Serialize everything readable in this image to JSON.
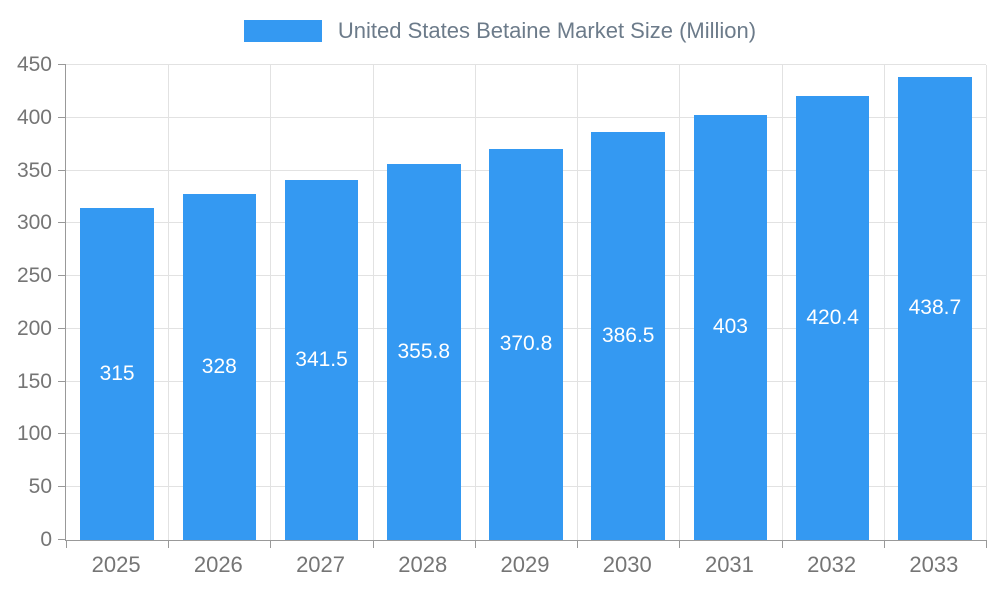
{
  "chart_data": {
    "type": "bar",
    "title": "United States Betaine Market Size (Million)",
    "categories": [
      "2025",
      "2026",
      "2027",
      "2028",
      "2029",
      "2030",
      "2031",
      "2032",
      "2033"
    ],
    "values": [
      315,
      328,
      341.5,
      355.8,
      370.8,
      386.5,
      403,
      420.4,
      438.7
    ],
    "value_labels": [
      "315",
      "328",
      "341.5",
      "355.8",
      "370.8",
      "386.5",
      "403",
      "420.4",
      "438.7"
    ],
    "xlabel": "",
    "ylabel": "",
    "ylim": [
      0,
      450
    ],
    "ytick_step": 50,
    "grid": true,
    "legend_position": "top",
    "colors": {
      "bar": "#3499f2",
      "value_label": "#ffffff",
      "title_text": "#6c7b8a",
      "axis_text": "#757575",
      "gridline": "#e2e2e2",
      "axis_line": "#999999"
    }
  }
}
